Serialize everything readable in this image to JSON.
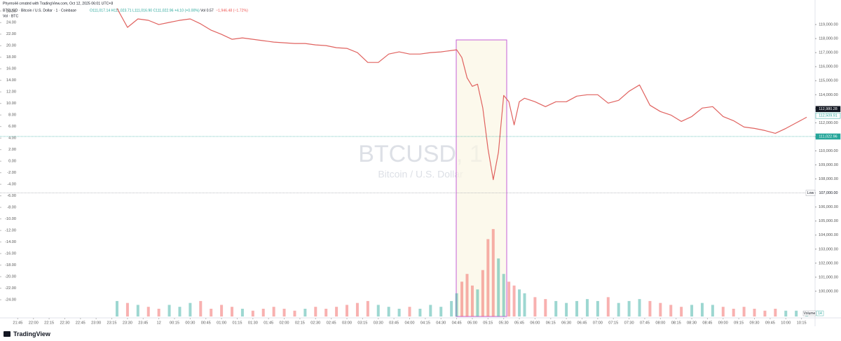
{
  "header": {
    "credit": "Phyres44 created with TradingView.com, Oct 12, 2025 06:01 UTC+8",
    "symbol": "BTCUSD · Bitcoin / U.S. Dollar · 1 · Coinbase",
    "ohlc": "O111,017.14 H111,023.71 L111,016.90 C111,022.96 +4.10 (+0.00%)",
    "volume": "Vol 0.57",
    "change": "−1,946.48 (−1.72%)",
    "volume_legend": "Vol · BTC"
  },
  "watermark": {
    "symbol": "BTCUSD, 1",
    "name": "Bitcoin / U.S. Dollar"
  },
  "brand": "TradingView",
  "chart_data": {
    "type": "line",
    "x": [
      "23:20",
      "23:30",
      "23:40",
      "23:50",
      "00:00",
      "00:10",
      "00:20",
      "00:30",
      "00:40",
      "00:50",
      "01:00",
      "01:10",
      "01:20",
      "01:30",
      "01:40",
      "01:50",
      "02:00",
      "02:10",
      "02:20",
      "02:30",
      "02:40",
      "02:50",
      "03:00",
      "03:10",
      "03:20",
      "03:30",
      "03:40",
      "03:50",
      "04:00",
      "04:10",
      "04:20",
      "04:30",
      "04:40",
      "04:45",
      "04:50",
      "04:55",
      "05:00",
      "05:05",
      "05:10",
      "05:15",
      "05:20",
      "05:25",
      "05:30",
      "05:35",
      "05:40",
      "05:45",
      "05:50",
      "06:00",
      "06:10",
      "06:20",
      "06:30",
      "06:40",
      "06:50",
      "07:00",
      "07:10",
      "07:20",
      "07:30",
      "07:40",
      "07:50",
      "08:00",
      "08:10",
      "08:20",
      "08:30",
      "08:40",
      "08:50",
      "09:00",
      "09:10",
      "09:20",
      "09:30",
      "09:40",
      "09:50",
      "10:00",
      "10:10",
      "10:20"
    ],
    "series": [
      {
        "name": "BTCUSD",
        "color": "#e0625f",
        "values": [
          120150,
          118800,
          119400,
          119300,
          119000,
          119150,
          119300,
          119400,
          119050,
          118600,
          118300,
          117950,
          118050,
          117950,
          117850,
          117750,
          117700,
          117650,
          117650,
          117550,
          117500,
          117350,
          117300,
          117000,
          116300,
          116300,
          116900,
          117050,
          116900,
          116900,
          117000,
          117050,
          117150,
          117200,
          116650,
          115200,
          114600,
          114750,
          113050,
          110150,
          107950,
          109900,
          113950,
          113500,
          111850,
          113500,
          113750,
          113500,
          113150,
          113500,
          113500,
          113900,
          114000,
          114000,
          113400,
          113600,
          114250,
          114700,
          113250,
          112800,
          112550,
          112100,
          112450,
          113050,
          113150,
          112450,
          112150,
          111700,
          111600,
          111450,
          111250,
          111600,
          112000,
          112400
        ]
      },
      {
        "name": "Volume",
        "color": "#26a69a",
        "axis": "y3",
        "values": [
          40,
          35,
          30,
          25,
          20,
          30,
          25,
          35,
          40,
          20,
          30,
          25,
          20,
          15,
          20,
          25,
          20,
          15,
          20,
          25,
          20,
          25,
          30,
          35,
          40,
          30,
          25,
          20,
          25,
          20,
          30,
          25,
          40,
          60,
          90,
          110,
          80,
          70,
          120,
          200,
          226,
          150,
          110,
          90,
          80,
          70,
          60,
          50,
          45,
          40,
          35,
          40,
          45,
          40,
          50,
          35,
          40,
          45,
          40,
          35,
          30,
          25,
          30,
          35,
          30,
          25,
          20,
          25,
          20,
          15,
          20,
          15,
          15,
          14
        ]
      }
    ],
    "down_color": "#ef5350",
    "xlim": [
      "21:28",
      "10:28"
    ],
    "xticks": [
      "21:45",
      "22:00",
      "22:15",
      "22:30",
      "22:45",
      "23:00",
      "23:15",
      "23:30",
      "23:45",
      {
        "value": "00:00",
        "label": "12"
      },
      "00:15",
      "00:30",
      "00:45",
      "01:00",
      "01:15",
      "01:30",
      "01:45",
      "02:00",
      "02:15",
      "02:30",
      "02:45",
      "03:00",
      "03:15",
      "03:30",
      "03:45",
      "04:00",
      "04:15",
      "04:30",
      "04:45",
      "05:00",
      "05:15",
      "05:30",
      "05:45",
      "06:00",
      "06:15",
      "06:30",
      "06:45",
      "07:00",
      "07:15",
      "07:30",
      "07:45",
      "08:00",
      "08:15",
      "08:30",
      "08:45",
      "09:00",
      "09:15",
      "09:30",
      "09:45",
      "10:00",
      "10:15"
    ],
    "ylim": [
      98200,
      120250
    ],
    "yticks": [
      {
        "value": 100000,
        "label": "100,000.00"
      },
      {
        "value": 101000,
        "label": "101,000.00"
      },
      {
        "value": 102000,
        "label": "102,000.00"
      },
      {
        "value": 103000,
        "label": "103,000.00"
      },
      {
        "value": 104000,
        "label": "104,000.00"
      },
      {
        "value": 105000,
        "label": "105,000.00"
      },
      {
        "value": 106000,
        "label": "106,000.00"
      },
      {
        "value": 107000,
        "label": "107,000.00"
      },
      {
        "value": 108000,
        "label": "108,000.00"
      },
      {
        "value": 109000,
        "label": "109,000.00"
      },
      {
        "value": 110000,
        "label": "110,000.00"
      },
      {
        "value": 111000,
        "label": "111,000.00"
      },
      {
        "value": 112000,
        "label": "112,000.00"
      },
      {
        "value": 113000,
        "label": "113,000.00"
      },
      {
        "value": 114000,
        "label": "114,000.00"
      },
      {
        "value": 115000,
        "label": "115,000.00"
      },
      {
        "value": 116000,
        "label": "116,000.00"
      },
      {
        "value": 117000,
        "label": "117,000.00"
      },
      {
        "value": 118000,
        "label": "118,000.00"
      },
      {
        "value": 119000,
        "label": "119,000.00"
      }
    ],
    "y2lim": [
      -26.9,
      26.7
    ],
    "y2ticks": [
      {
        "value": 26,
        "label": "26.00"
      },
      {
        "value": 24,
        "label": "24.00"
      },
      {
        "value": 22,
        "label": "22.00"
      },
      {
        "value": 20,
        "label": "20.00"
      },
      {
        "value": 18,
        "label": "18.00"
      },
      {
        "value": 16,
        "label": "16.00"
      },
      {
        "value": 14,
        "label": "14.00"
      },
      {
        "value": 12,
        "label": "12.00"
      },
      {
        "value": 10,
        "label": "10.00"
      },
      {
        "value": 8,
        "label": "8.00"
      },
      {
        "value": 6,
        "label": "6.00"
      },
      {
        "value": 4,
        "label": "4.00"
      },
      {
        "value": 2,
        "label": "2.00"
      },
      {
        "value": 0,
        "label": "0.00"
      },
      {
        "value": -2,
        "label": "-2.00"
      },
      {
        "value": -4,
        "label": "-4.00"
      },
      {
        "value": -6,
        "label": "-6.00"
      },
      {
        "value": -8,
        "label": "-8.00"
      },
      {
        "value": -10,
        "label": "-10.00"
      },
      {
        "value": -12,
        "label": "-12.00"
      },
      {
        "value": -14,
        "label": "-14.00"
      },
      {
        "value": -16,
        "label": "-16.00"
      },
      {
        "value": -18,
        "label": "-18.00"
      },
      {
        "value": -20,
        "label": "-20.00"
      },
      {
        "value": -22,
        "label": "-22.00"
      },
      {
        "value": -24,
        "label": "-24.00"
      }
    ],
    "y3lim": [
      0,
      800
    ],
    "grid": false,
    "price_labels": [
      {
        "value": 112980.28,
        "label": "112,980.28",
        "color": "#131722",
        "style": "solid"
      },
      {
        "value": 112509.91,
        "label": "112,509.91",
        "color": "#26a69a",
        "style": "outline"
      },
      {
        "value": 111022.96,
        "label": "111,022.96",
        "color": "#26a69a",
        "style": "line"
      }
    ],
    "low": {
      "title": "Low",
      "value": 107000,
      "label": "107,000.00"
    },
    "volume_label": {
      "title": "Volume",
      "value": 14
    }
  }
}
